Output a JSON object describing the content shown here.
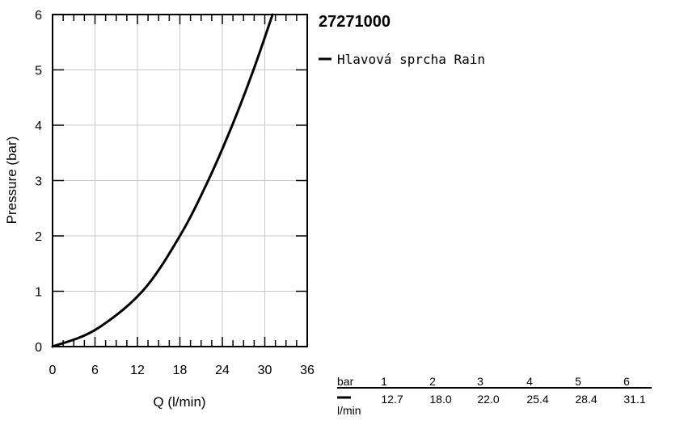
{
  "chart_data": {
    "type": "line",
    "title": "27271000",
    "xlabel": "Q (l/min)",
    "ylabel": "Pressure (bar)",
    "xlim": [
      0,
      36
    ],
    "ylim": [
      0,
      6
    ],
    "xticks": [
      0,
      6,
      12,
      18,
      24,
      30,
      36
    ],
    "yticks": [
      0,
      1,
      2,
      3,
      4,
      5,
      6
    ],
    "grid": true,
    "legend_position": "right",
    "series": [
      {
        "name": "Hlavová sprcha Rain",
        "color": "#000000",
        "x": [
          0,
          6,
          12.7,
          18.0,
          22.0,
          25.4,
          28.4,
          31.1
        ],
        "y": [
          0,
          0.3,
          1,
          2,
          3,
          4,
          5,
          6
        ]
      }
    ],
    "table": {
      "row1_label": "bar",
      "row2_label": "l/min",
      "bar_values": [
        "1",
        "2",
        "3",
        "4",
        "5",
        "6"
      ],
      "flow_values": [
        "12.7",
        "18.0",
        "22.0",
        "25.4",
        "28.4",
        "31.1"
      ]
    }
  }
}
